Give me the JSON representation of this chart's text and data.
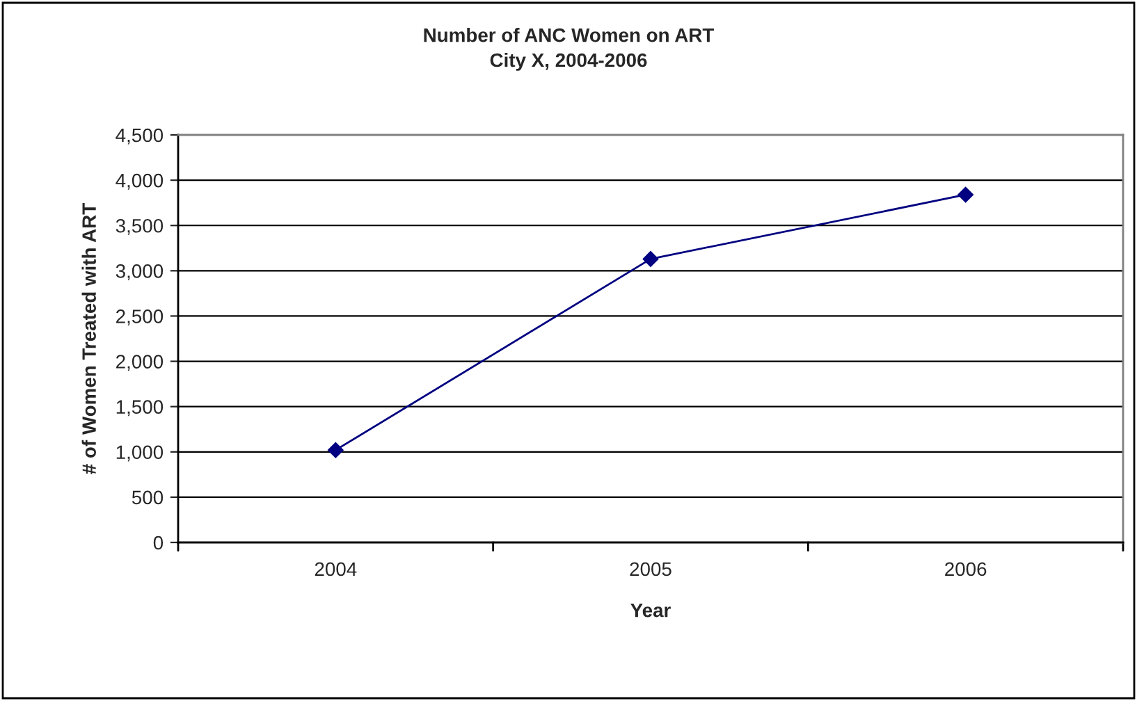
{
  "chart_data": {
    "type": "line",
    "title": "Number of ANC Women on ART\nCity X, 2004-2006",
    "xlabel": "Year",
    "ylabel": "# of Women Treated with ART",
    "categories": [
      "2004",
      "2005",
      "2006"
    ],
    "series": [
      {
        "color": "#000080",
        "values": [
          1020,
          3130,
          3840
        ]
      }
    ],
    "ylim": [
      0,
      4500
    ],
    "yticks": [
      {
        "value": 0,
        "label": "0"
      },
      {
        "value": 500,
        "label": "500"
      },
      {
        "value": 1000,
        "label": "1,000"
      },
      {
        "value": 1500,
        "label": "1,500"
      },
      {
        "value": 2000,
        "label": "2,000"
      },
      {
        "value": 2500,
        "label": "2,500"
      },
      {
        "value": 3000,
        "label": "3,000"
      },
      {
        "value": 3500,
        "label": "3,500"
      },
      {
        "value": 4000,
        "label": "4,000"
      },
      {
        "value": 4500,
        "label": "4,500"
      }
    ],
    "grid": "y",
    "marker": "diamond",
    "line_style": "solid"
  }
}
